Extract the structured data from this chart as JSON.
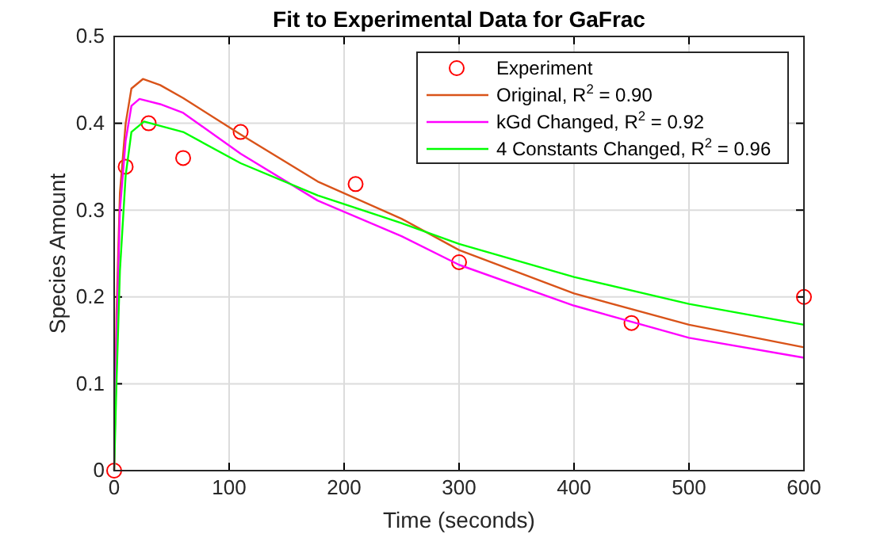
{
  "chart_data": {
    "type": "line",
    "title": "Fit to Experimental Data for GaFrac",
    "xlabel": "Time (seconds)",
    "ylabel": "Species Amount",
    "xlim": [
      0,
      600
    ],
    "xticks": [
      0,
      100,
      200,
      300,
      400,
      500,
      600
    ],
    "ylim": [
      0,
      0.5
    ],
    "yticks": [
      0,
      0.1,
      0.2,
      0.3,
      0.4,
      0.5
    ],
    "grid": true,
    "legend": "top right",
    "series": [
      {
        "name": "Experiment",
        "type": "scatter",
        "marker": "circle",
        "color": "#ff0000",
        "x": [
          0,
          10,
          30,
          60,
          110,
          210,
          300,
          450,
          600
        ],
        "values": [
          0,
          0.35,
          0.4,
          0.36,
          0.39,
          0.33,
          0.24,
          0.17,
          0.2
        ]
      },
      {
        "name": "Original, R$^{2}$ = 0.90",
        "color": "#d95319",
        "x": [
          0,
          2,
          5,
          10,
          15,
          25,
          40,
          60,
          110,
          177,
          250,
          300,
          400,
          500,
          600
        ],
        "values": [
          0,
          0.18,
          0.32,
          0.4,
          0.44,
          0.451,
          0.444,
          0.429,
          0.387,
          0.333,
          0.29,
          0.254,
          0.204,
          0.168,
          0.142
        ]
      },
      {
        "name": "kGd Changed, R$^{2}$ = 0.92",
        "color": "#ff00ff",
        "x": [
          0,
          2,
          5,
          10,
          15,
          22,
          40,
          60,
          110,
          177,
          250,
          300,
          400,
          500,
          600
        ],
        "values": [
          0,
          0.15,
          0.3,
          0.38,
          0.42,
          0.428,
          0.422,
          0.412,
          0.365,
          0.311,
          0.27,
          0.237,
          0.19,
          0.153,
          0.13
        ]
      },
      {
        "name": "4 Constants Changed, R$^{2}$ = 0.96",
        "color": "#00ff00",
        "x": [
          0,
          2,
          5,
          10,
          15,
          26,
          40,
          60,
          110,
          177,
          250,
          300,
          400,
          500,
          600
        ],
        "values": [
          0,
          0.1,
          0.23,
          0.34,
          0.39,
          0.402,
          0.397,
          0.39,
          0.354,
          0.317,
          0.285,
          0.261,
          0.223,
          0.192,
          0.168
        ]
      }
    ]
  }
}
